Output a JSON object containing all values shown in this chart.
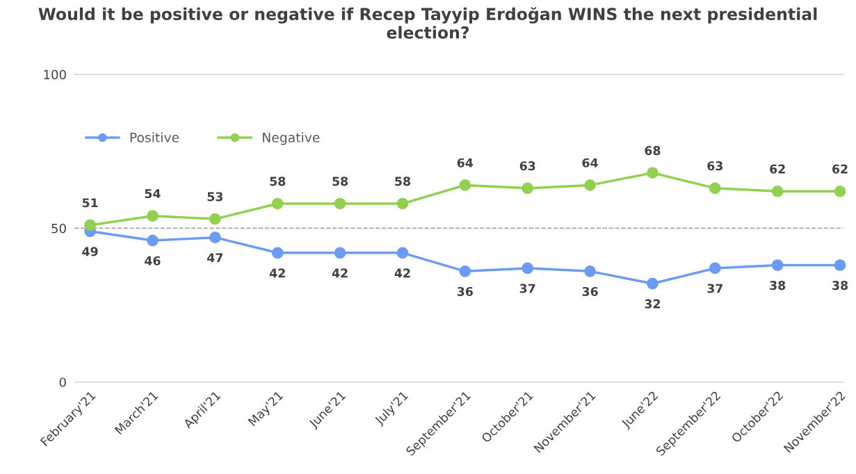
{
  "chart_data": {
    "type": "line",
    "title": "Would it be positive or negative if Recep Tayyip Erdoğan WINS the next presidential election?",
    "categories": [
      "February'21",
      "March'21",
      "April'21",
      "May'21",
      "June'21",
      "July'21",
      "September'21",
      "October'21",
      "November'21",
      "June'22",
      "September'22",
      "October'22",
      "November'22"
    ],
    "series": [
      {
        "name": "Positive",
        "color": "#6b9bf5",
        "values": [
          49,
          46,
          47,
          42,
          42,
          42,
          36,
          37,
          36,
          32,
          37,
          38,
          38
        ]
      },
      {
        "name": "Negative",
        "color": "#92d050",
        "values": [
          51,
          54,
          53,
          58,
          58,
          58,
          64,
          63,
          64,
          68,
          63,
          62,
          62
        ]
      }
    ],
    "ylim": [
      0,
      100
    ],
    "yticks": [
      0,
      50,
      100
    ],
    "grid": false,
    "ref_lines": [
      {
        "axis": "y",
        "value": 50,
        "color": "#a6a6a6",
        "line_style": "dashed"
      }
    ],
    "legend": "top left",
    "marker": "circle",
    "line_style": "solid",
    "data_labels": true
  }
}
